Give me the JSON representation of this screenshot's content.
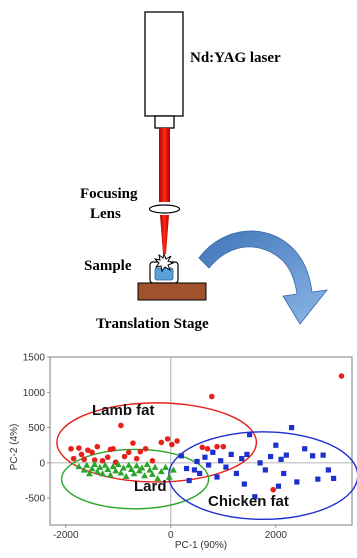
{
  "diagram": {
    "laser_label": "Nd:YAG laser",
    "focusing_lens_line1": "Focusing",
    "focusing_lens_line2": "Lens",
    "sample_label": "Sample",
    "stage_label": "Translation Stage",
    "beam_color": "#e60000",
    "stage_color": "#a0522d",
    "sample_color": "#5aa0d8",
    "arrow_color": "#4f86c6"
  },
  "chart_data": {
    "type": "scatter",
    "xlabel": "PC-1 (90%)",
    "ylabel": "PC-2 (4%)",
    "xlim": [
      -2300,
      3450
    ],
    "ylim": [
      -880,
      1500
    ],
    "x_ticks": [
      -2000,
      0,
      2000
    ],
    "y_ticks": [
      1500,
      1000,
      500,
      0,
      -500
    ],
    "grid": false,
    "annotations": [
      "Lamb fat",
      "Lard",
      "Chicken fat"
    ],
    "series": [
      {
        "color": "#e8201a",
        "marker": "circle",
        "points": [
          [
            -1900,
            200
          ],
          [
            -1850,
            60
          ],
          [
            -1750,
            210
          ],
          [
            -1700,
            120
          ],
          [
            -1650,
            50
          ],
          [
            -1580,
            180
          ],
          [
            -1500,
            150
          ],
          [
            -1450,
            40
          ],
          [
            -1400,
            230
          ],
          [
            -1300,
            30
          ],
          [
            -1200,
            80
          ],
          [
            -1150,
            190
          ],
          [
            -1100,
            200
          ],
          [
            -1050,
            10
          ],
          [
            -950,
            530
          ],
          [
            -880,
            90
          ],
          [
            -800,
            150
          ],
          [
            -720,
            280
          ],
          [
            -650,
            60
          ],
          [
            -580,
            160
          ],
          [
            -480,
            200
          ],
          [
            -350,
            30
          ],
          [
            -180,
            290
          ],
          [
            -60,
            340
          ],
          [
            20,
            260
          ],
          [
            120,
            310
          ],
          [
            600,
            220
          ],
          [
            700,
            200
          ],
          [
            780,
            940
          ],
          [
            880,
            230
          ],
          [
            1000,
            230
          ],
          [
            1950,
            -380
          ],
          [
            3250,
            1230
          ]
        ]
      },
      {
        "color": "#2aa52a",
        "marker": "triangle",
        "points": [
          [
            -1750,
            -50
          ],
          [
            -1650,
            -100
          ],
          [
            -1600,
            -30
          ],
          [
            -1550,
            -150
          ],
          [
            -1500,
            -80
          ],
          [
            -1450,
            -20
          ],
          [
            -1400,
            -120
          ],
          [
            -1350,
            -60
          ],
          [
            -1300,
            -150
          ],
          [
            -1250,
            -30
          ],
          [
            -1200,
            -90
          ],
          [
            -1150,
            -170
          ],
          [
            -1100,
            -50
          ],
          [
            -1050,
            -110
          ],
          [
            -1000,
            -20
          ],
          [
            -950,
            -140
          ],
          [
            -900,
            -70
          ],
          [
            -850,
            -190
          ],
          [
            -800,
            -30
          ],
          [
            -750,
            -90
          ],
          [
            -700,
            -150
          ],
          [
            -650,
            -40
          ],
          [
            -600,
            -110
          ],
          [
            -550,
            -70
          ],
          [
            -500,
            -180
          ],
          [
            -450,
            -20
          ],
          [
            -400,
            -100
          ],
          [
            -350,
            -160
          ],
          [
            -300,
            -60
          ],
          [
            -250,
            -220
          ],
          [
            -180,
            -120
          ],
          [
            -100,
            -60
          ],
          [
            -30,
            -200
          ],
          [
            50,
            -100
          ]
        ]
      },
      {
        "color": "#1c2fcf",
        "marker": "square",
        "points": [
          [
            200,
            100
          ],
          [
            300,
            -80
          ],
          [
            350,
            -250
          ],
          [
            450,
            -100
          ],
          [
            500,
            20
          ],
          [
            550,
            -150
          ],
          [
            650,
            80
          ],
          [
            720,
            -30
          ],
          [
            800,
            150
          ],
          [
            880,
            -200
          ],
          [
            950,
            30
          ],
          [
            1050,
            -60
          ],
          [
            1150,
            120
          ],
          [
            1250,
            -150
          ],
          [
            1350,
            60
          ],
          [
            1400,
            -300
          ],
          [
            1450,
            120
          ],
          [
            1500,
            400
          ],
          [
            1600,
            -480
          ],
          [
            1700,
            0
          ],
          [
            1800,
            -100
          ],
          [
            1900,
            90
          ],
          [
            2000,
            250
          ],
          [
            2050,
            -330
          ],
          [
            2100,
            50
          ],
          [
            2150,
            -150
          ],
          [
            2200,
            110
          ],
          [
            2300,
            500
          ],
          [
            2400,
            -270
          ],
          [
            2550,
            200
          ],
          [
            2700,
            100
          ],
          [
            2800,
            -230
          ],
          [
            2900,
            110
          ],
          [
            3000,
            -100
          ],
          [
            3100,
            -220
          ]
        ]
      }
    ],
    "ellipses": [
      {
        "color": "#e8201a",
        "cx": -270,
        "cy": 290,
        "rx": 1900,
        "ry": 560
      },
      {
        "color": "#2aa52a",
        "cx": -680,
        "cy": -230,
        "rx": 1400,
        "ry": 420
      },
      {
        "color": "#1c2fcf",
        "cx": 1760,
        "cy": -180,
        "rx": 1800,
        "ry": 620
      }
    ]
  }
}
